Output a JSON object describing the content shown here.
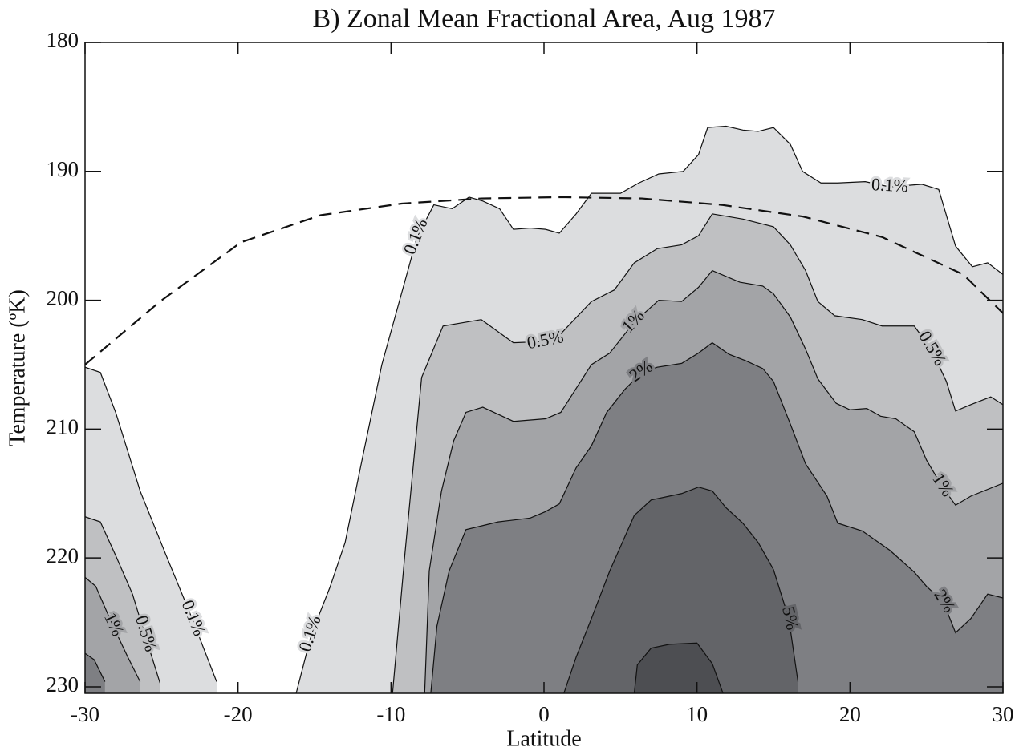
{
  "chart_data": {
    "type": "contour",
    "title": "B) Zonal Mean Fractional Area, Aug 1987",
    "x_label": "Latitude",
    "y_label": "Temperature (ºK)",
    "xlim": [
      -30,
      30
    ],
    "xticks": [
      -30,
      -20,
      -10,
      0,
      10,
      20,
      30
    ],
    "ylim": [
      180,
      230.5
    ],
    "yticks": [
      180,
      190,
      200,
      210,
      220,
      230
    ],
    "y_reversed": true,
    "levels": [
      {
        "value": 0.1,
        "label": "0.1%",
        "color": "#dcdddf",
        "regions": [
          {
            "lat": [
              -16.2,
              -15.2,
              -14,
              -13,
              -12,
              -10.6,
              -8.9,
              -8.3,
              -7.2,
              -6,
              -4.9,
              -4,
              -2.9,
              -2,
              -0.9,
              0.1,
              1,
              2.1,
              3.1,
              5,
              6.2,
              7.5,
              9.1,
              10.1,
              10.7,
              11.9,
              13,
              14,
              15,
              16.1,
              16.9,
              18.1,
              19.2,
              21,
              22.6,
              24.7,
              25.8,
              26.9,
              28,
              29,
              30
            ],
            "temp": [
              230.5,
              225.9,
              222.3,
              218.8,
              213,
              205,
              197.7,
              195.1,
              192.6,
              192.9,
              192,
              192.3,
              192.9,
              194.5,
              194.4,
              194.5,
              194.8,
              193.3,
              191.7,
              191.7,
              190.9,
              190.2,
              190,
              188.7,
              186.6,
              186.5,
              186.8,
              186.9,
              186.6,
              187.9,
              190,
              190.9,
              190.9,
              190.8,
              191.2,
              191,
              191.4,
              195.8,
              197.4,
              197.1,
              198
            ]
          },
          {
            "lat": [
              -30,
              -29,
              -28,
              -26.4,
              -24.7,
              -23,
              -21.4
            ],
            "temp": [
              205.2,
              205.6,
              208.7,
              214.8,
              219.8,
              224.7,
              229.6
            ]
          }
        ]
      },
      {
        "value": 0.5,
        "label": "0.5%",
        "color": "#bfc0c2",
        "regions": [
          {
            "lat": [
              -9.9,
              -9.1,
              -8,
              -6.6,
              -5.1,
              -4.1,
              -2,
              0.1,
              1.1,
              3.1,
              4.6,
              5.9,
              7.4,
              9,
              10.1,
              11,
              13,
              15,
              16.1,
              17.1,
              17.9,
              19,
              20.8,
              22.1,
              24.2,
              25.3,
              26.3,
              26.9,
              27.9,
              29.2,
              30
            ],
            "temp": [
              230.5,
              219.8,
              206,
              202,
              201.7,
              201.5,
              203.3,
              203.2,
              202.6,
              200.1,
              199.2,
              197.1,
              196,
              195.7,
              195,
              193.3,
              193.7,
              194.3,
              195.7,
              197.7,
              200.1,
              201.2,
              201.5,
              202,
              202,
              203.8,
              206.3,
              208.6,
              208.1,
              207.5,
              208.1
            ]
          },
          {
            "lat": [
              -30,
              -29,
              -28,
              -26.9,
              -26.1,
              -25.1
            ],
            "temp": [
              216.8,
              217.2,
              219.8,
              222.8,
              225.9,
              229.7
            ]
          }
        ]
      },
      {
        "value": 1,
        "label": "1%",
        "color": "#a3a4a7",
        "regions": [
          {
            "lat": [
              -7.8,
              -7.5,
              -6.7,
              -5.9,
              -5.1,
              -4,
              -2,
              0.1,
              1.1,
              3.1,
              4.3,
              5.9,
              7.5,
              9,
              10.1,
              11,
              12.8,
              14.3,
              15,
              16.1,
              17.1,
              17.9,
              19.1,
              20,
              21.1,
              22,
              23,
              24.2,
              25,
              26,
              26.9,
              27.9,
              30
            ],
            "temp": [
              230.5,
              221,
              214.8,
              210.9,
              208.7,
              208.3,
              209.4,
              209.2,
              208.7,
              205,
              204.1,
              201.7,
              200,
              200.1,
              199,
              197.7,
              198.6,
              198.9,
              199.5,
              201.3,
              203.8,
              206.1,
              208,
              208.5,
              208.4,
              209,
              209.2,
              210.2,
              212.4,
              214.4,
              215.9,
              215.2,
              214.2
            ]
          },
          {
            "lat": [
              -30,
              -29.3,
              -28.2,
              -27.2,
              -26.4
            ],
            "temp": [
              221.5,
              222.2,
              225.2,
              227.7,
              229.6
            ]
          }
        ]
      },
      {
        "value": 2,
        "label": "2%",
        "color": "#7e7f83",
        "regions": [
          {
            "lat": [
              -7.4,
              -7,
              -6.2,
              -5.1,
              -3,
              -0.9,
              0.1,
              1,
              2.1,
              3.1,
              4.1,
              5.3,
              6.4,
              7.4,
              9,
              10.1,
              11,
              12.1,
              13.2,
              14.3,
              15,
              16.1,
              17.1,
              18.5,
              19.2,
              20.8,
              22.6,
              24.2,
              25,
              26.1,
              26.9,
              27.9,
              29,
              30
            ],
            "temp": [
              230.5,
              225.3,
              221,
              217.8,
              217.2,
              216.9,
              216.4,
              215.8,
              213,
              211.3,
              208.7,
              206.9,
              205.6,
              205.2,
              204.9,
              204.1,
              203.3,
              204.2,
              204.7,
              205.3,
              206.3,
              209.6,
              212.7,
              215.2,
              217.3,
              217.9,
              219.4,
              221.1,
              222.2,
              223.4,
              225.8,
              224.7,
              222.8,
              223.1
            ]
          },
          {
            "lat": [
              -30,
              -29.4,
              -28.7
            ],
            "temp": [
              227.4,
              227.9,
              229.6
            ]
          }
        ]
      },
      {
        "value": 5,
        "label": "5%",
        "color": "#636468",
        "regions": [
          {
            "lat": [
              1.3,
              2.1,
              3.1,
              4.3,
              5.9,
              7,
              9,
              10.1,
              11,
              11.9,
              13,
              14,
              15,
              16,
              16.6
            ],
            "temp": [
              230.5,
              227.7,
              224.7,
              221,
              216.7,
              215.5,
              215,
              214.5,
              214.8,
              216.1,
              217.3,
              218.8,
              220.9,
              224.7,
              229.6
            ]
          }
        ]
      },
      {
        "color": "#4d4e52",
        "regions": [
          {
            "lat": [
              5.9,
              6.1,
              7,
              8.2,
              10,
              11,
              11.7
            ],
            "temp": [
              230.5,
              228.3,
              227,
              226.7,
              226.6,
              228.2,
              230.5
            ]
          }
        ]
      }
    ],
    "curve": {
      "style": "dashed",
      "lat": [
        -30,
        -25.1,
        -19.8,
        -14.6,
        -9.3,
        -4.1,
        1.1,
        6.4,
        11.6,
        16.9,
        22.1,
        27.4,
        30
      ],
      "temp": [
        205,
        200.1,
        195.5,
        193.4,
        192.5,
        192.1,
        192,
        192.1,
        192.6,
        193.5,
        195.1,
        198,
        201
      ]
    }
  }
}
